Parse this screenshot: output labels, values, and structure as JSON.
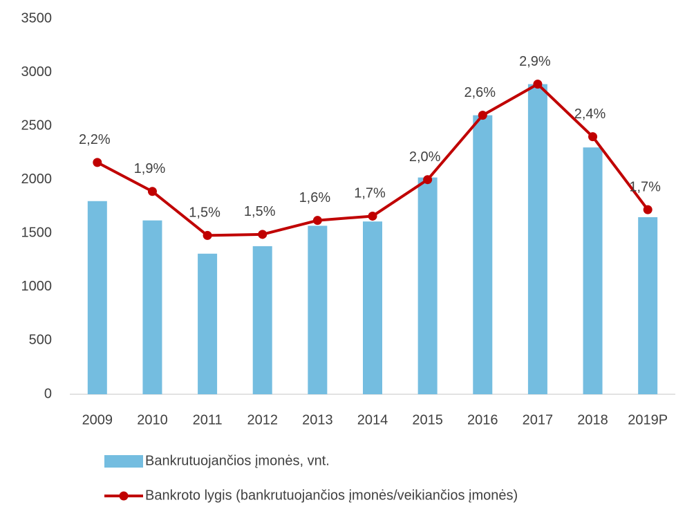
{
  "chart_data": {
    "type": "bar_line",
    "categories": [
      "2009",
      "2010",
      "2011",
      "2012",
      "2013",
      "2014",
      "2015",
      "2016",
      "2017",
      "2018",
      "2019P"
    ],
    "series": [
      {
        "name": "Bankrutuojančios įmonės, vnt.",
        "type": "bar",
        "color": "#74bde0",
        "values": [
          1800,
          1620,
          1310,
          1380,
          1570,
          1610,
          2020,
          2600,
          2890,
          2300,
          1650
        ]
      },
      {
        "name": "Bankroto lygis (bankrutuojančios įmonės/veikiančios įmonės)",
        "type": "line",
        "color": "#c00000",
        "axis": "y2",
        "values": [
          2.16,
          1.89,
          1.48,
          1.49,
          1.62,
          1.66,
          2.0,
          2.6,
          2.89,
          2.4,
          1.72
        ],
        "value_labels": [
          "2,2%",
          "1,9%",
          "1,5%",
          "1,5%",
          "1,6%",
          "1,7%",
          "2,0%",
          "2,6%",
          "2,9%",
          "2,4%",
          "1,7%"
        ]
      }
    ],
    "ylim": [
      0,
      3500
    ],
    "yticks": [
      0,
      500,
      1000,
      1500,
      2000,
      2500,
      3000,
      3500
    ],
    "y2lim": [
      0,
      3.5
    ],
    "grid": false,
    "legend": "bottom"
  }
}
